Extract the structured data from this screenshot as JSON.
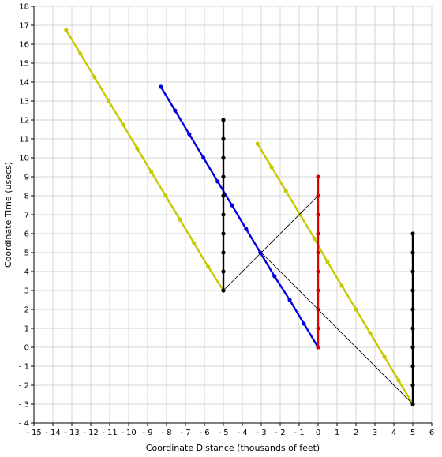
{
  "chart_data": {
    "type": "line",
    "title": "",
    "xlabel": "Coordinate Distance (thousands of feet)",
    "ylabel": "Coordinate Time (usecs)",
    "xlim": [
      -15,
      6
    ],
    "ylim": [
      -4,
      18
    ],
    "grid": true,
    "legend": "none",
    "series": [
      {
        "color": "#c8c800",
        "marker": true,
        "x": [
          -13.3,
          -12.55,
          -11.8,
          -11.05,
          -10.3,
          -9.55,
          -8.8,
          -8.05,
          -7.3,
          -6.55,
          -5.8,
          -5.0
        ],
        "y": [
          16.75,
          15.5,
          14.25,
          13.0,
          11.75,
          10.5,
          9.25,
          8.0,
          6.75,
          5.5,
          4.25,
          3.0
        ]
      },
      {
        "color": "#c8c800",
        "marker": true,
        "x": [
          -3.2,
          -2.45,
          -1.7,
          -0.95,
          -0.2,
          0.5,
          1.25,
          2.0,
          2.75,
          3.5,
          4.25,
          5.0
        ],
        "y": [
          10.75,
          9.5,
          8.25,
          7.0,
          5.75,
          4.5,
          3.25,
          2.0,
          0.75,
          -0.5,
          -1.75,
          -3.0
        ]
      },
      {
        "color": "#0000e0",
        "marker": true,
        "x": [
          -8.3,
          -7.55,
          -6.8,
          -6.05,
          -5.3,
          -4.55,
          -3.8,
          -3.05,
          -2.3,
          -1.5,
          -0.75,
          0.0
        ],
        "y": [
          13.75,
          12.5,
          11.25,
          10.0,
          8.75,
          7.5,
          6.25,
          5.0,
          3.75,
          2.5,
          1.25,
          0.0
        ]
      },
      {
        "color": "#000000",
        "marker": true,
        "x": [
          -5,
          -5,
          -5,
          -5,
          -5,
          -5,
          -5,
          -5,
          -5,
          -5
        ],
        "y": [
          3,
          4,
          5,
          6,
          7,
          8,
          9,
          10,
          11,
          12
        ]
      },
      {
        "color": "#e00000",
        "marker": true,
        "x": [
          0,
          0,
          0,
          0,
          0,
          0,
          0,
          0,
          0,
          0
        ],
        "y": [
          0,
          1,
          2,
          3,
          4,
          5,
          6,
          7,
          8,
          9
        ]
      },
      {
        "color": "#000000",
        "marker": true,
        "x": [
          5,
          5,
          5,
          5,
          5,
          5,
          5,
          5,
          5,
          5
        ],
        "y": [
          -3,
          -2,
          -1,
          0,
          1,
          2,
          3,
          4,
          5,
          6
        ]
      },
      {
        "color": "#000000",
        "marker": false,
        "thin": true,
        "x": [
          -5,
          0
        ],
        "y": [
          3,
          8
        ]
      },
      {
        "color": "#000000",
        "marker": false,
        "thin": true,
        "x": [
          -3,
          5
        ],
        "y": [
          5,
          -3
        ]
      }
    ]
  }
}
